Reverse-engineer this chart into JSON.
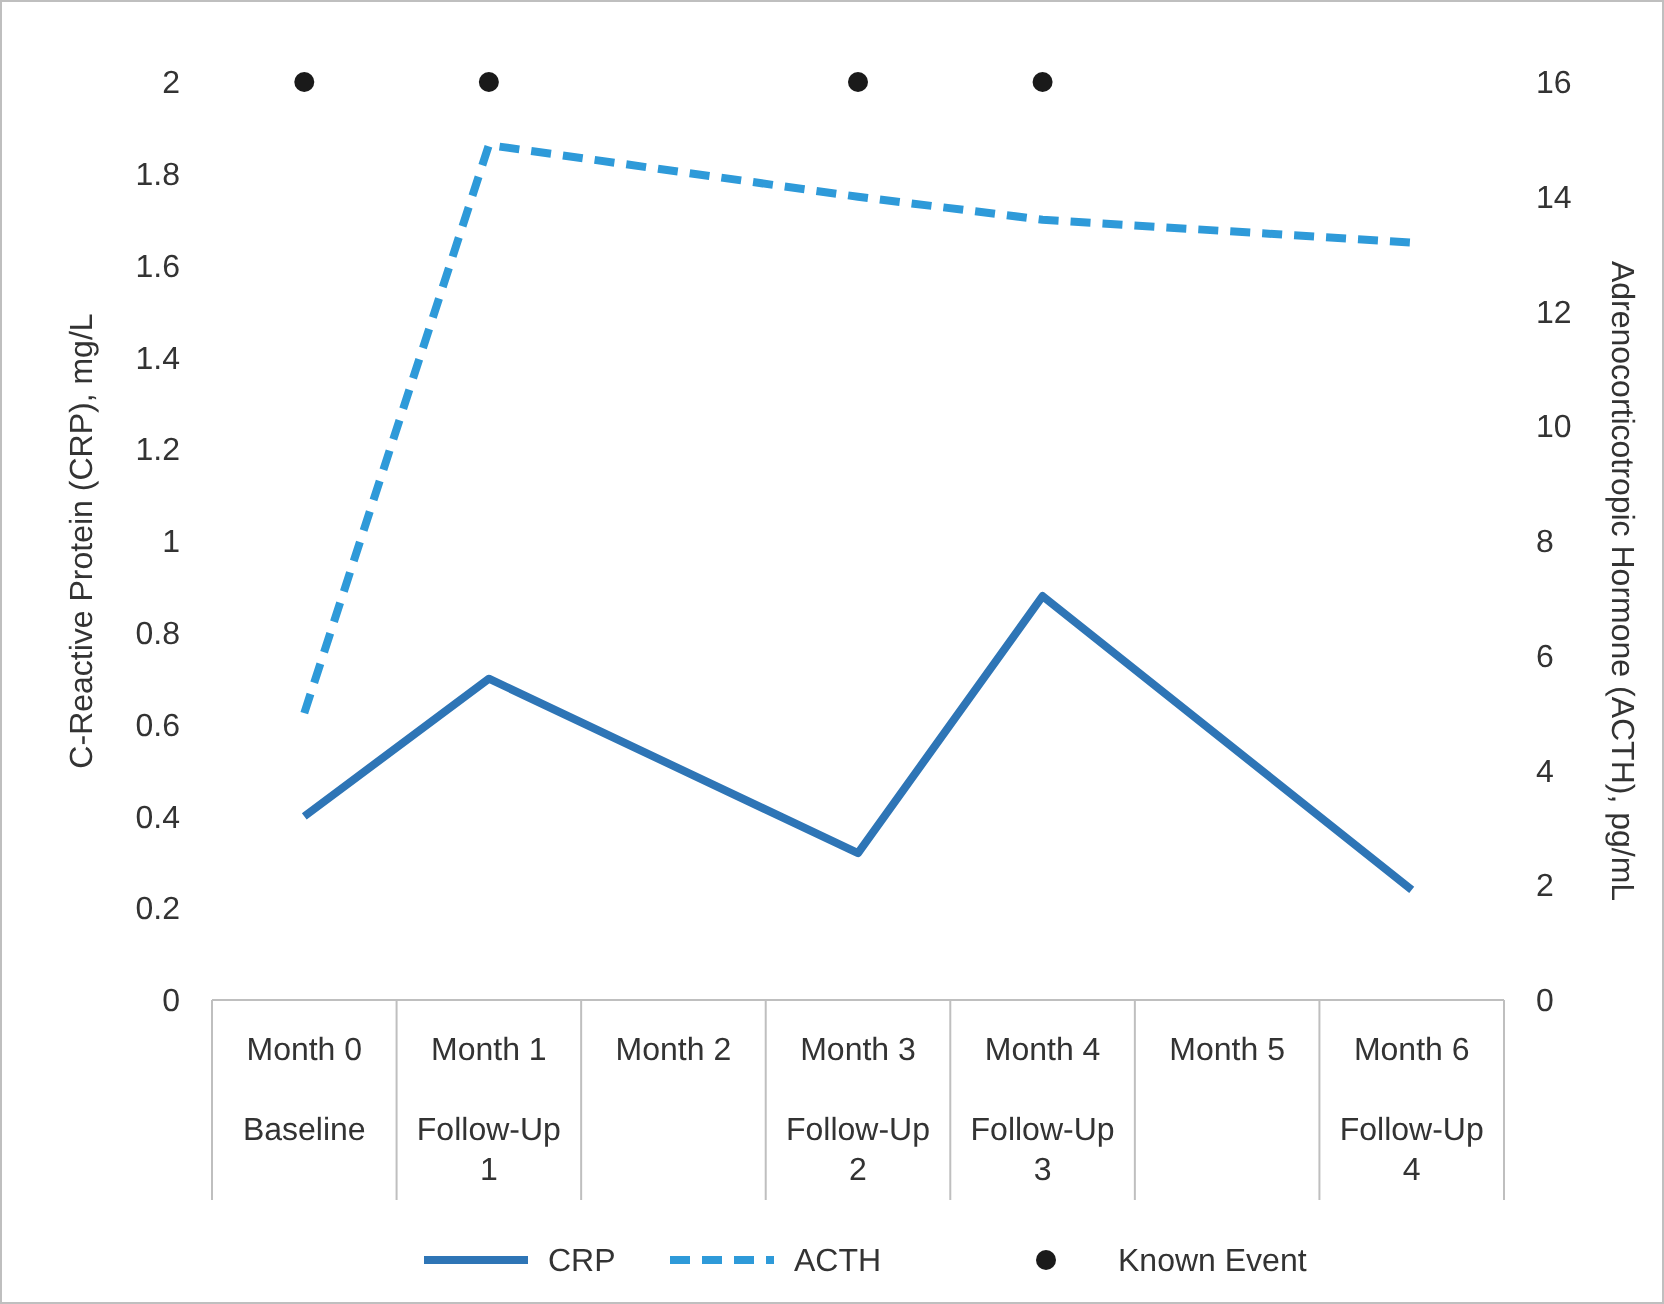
{
  "chart_data": {
    "type": "line",
    "categories": [
      "Month 0\nBaseline",
      "Month 1\nFollow-Up\n1",
      "Month 2",
      "Month 3\nFollow-Up\n2",
      "Month 4\nFollow-Up\n3",
      "Month 5",
      "Month 6\nFollow-Up\n4"
    ],
    "ylabel": "C-Reactive Protein (CRP), mg/L",
    "y2label": "Adrenocorticotropic Hormone (ACTH), pg/mL",
    "ylim": [
      0,
      2
    ],
    "yticks": [
      0,
      0.2,
      0.4,
      0.6,
      0.8,
      1,
      1.2,
      1.4,
      1.6,
      1.8,
      2
    ],
    "y2lim": [
      0,
      16
    ],
    "y2ticks": [
      0,
      2,
      4,
      6,
      8,
      10,
      12,
      14,
      16
    ],
    "grid": false,
    "legend": "bottom",
    "series": [
      {
        "name": "CRP",
        "color": "#2e75b6",
        "line_style": "solid",
        "marker": "none",
        "values": [
          0.4,
          0.7,
          null,
          0.32,
          0.88,
          null,
          0.24
        ]
      },
      {
        "name": "ACTH",
        "axis": "y2",
        "color": "#2e9ad9",
        "line_style": "dashed",
        "marker": "none",
        "values": [
          5,
          14.9,
          null,
          14,
          13.6,
          null,
          13.2
        ]
      },
      {
        "name": "Known Event",
        "type": "scatter",
        "color": "#1a1a1a",
        "marker": "circle",
        "values": [
          2,
          2,
          null,
          2,
          2,
          null,
          null
        ]
      }
    ]
  }
}
